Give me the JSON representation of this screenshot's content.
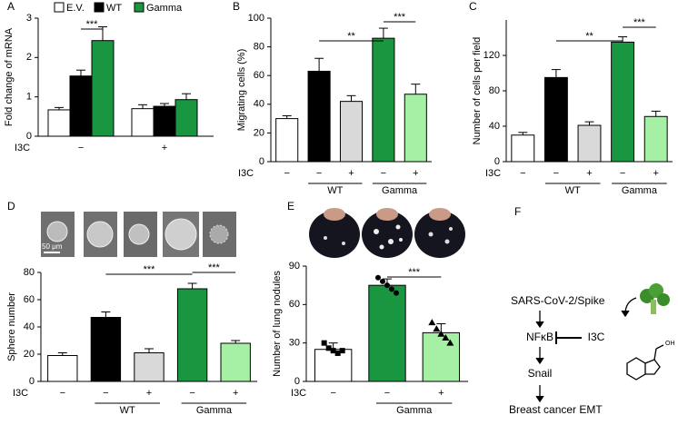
{
  "chart_data": [
    {
      "type": "grouped-bar",
      "panel": "A",
      "ylabel": "Fold change of mRNA",
      "x_row_label": "I3C",
      "categories": [
        "−",
        "+"
      ],
      "ylim": [
        0,
        3
      ],
      "yticks": [
        0,
        1,
        2,
        3
      ],
      "series": [
        {
          "name": "E.V.",
          "color": "#ffffff",
          "values": [
            0.67,
            0.7
          ],
          "errors": [
            0.06,
            0.1
          ]
        },
        {
          "name": "WT",
          "color": "#000000",
          "values": [
            1.53,
            0.76
          ],
          "errors": [
            0.15,
            0.07
          ]
        },
        {
          "name": "Gamma",
          "color": "#1a9641",
          "values": [
            2.43,
            0.93
          ],
          "errors": [
            0.35,
            0.15
          ]
        }
      ],
      "significance": [
        "***"
      ]
    },
    {
      "type": "bar",
      "panel": "B",
      "ylabel": "Migrating cells (%)",
      "x_row_label": "I3C",
      "categories": [
        "−",
        "−",
        "+",
        "−",
        "+"
      ],
      "group_labels": [
        "WT",
        "Gamma"
      ],
      "values": [
        30,
        63,
        42,
        86,
        47
      ],
      "errors": [
        2,
        9,
        4,
        7,
        7
      ],
      "colors": [
        "#ffffff",
        "#000000",
        "#d9d9d9",
        "#1a9641",
        "#a6f0a6"
      ],
      "ylim": [
        0,
        100
      ],
      "yticks": [
        0,
        20,
        40,
        60,
        80,
        100
      ],
      "significance": [
        "**",
        "***"
      ]
    },
    {
      "type": "bar",
      "panel": "C",
      "ylabel": "Number of cells per field",
      "x_row_label": "I3C",
      "categories": [
        "−",
        "−",
        "+",
        "−",
        "+"
      ],
      "group_labels": [
        "WT",
        "Gamma"
      ],
      "values": [
        30,
        95,
        41,
        135,
        51
      ],
      "errors": [
        3,
        9,
        4,
        6,
        6
      ],
      "colors": [
        "#ffffff",
        "#000000",
        "#d9d9d9",
        "#1a9641",
        "#a6f0a6"
      ],
      "ylim": [
        0,
        160
      ],
      "yticks": [
        0,
        40,
        80,
        120
      ],
      "significance": [
        "**",
        "***"
      ]
    },
    {
      "type": "bar",
      "panel": "D",
      "ylabel": "Sphere number",
      "x_row_label": "I3C",
      "scale_bar": "50 μm",
      "categories": [
        "−",
        "−",
        "+",
        "−",
        "+"
      ],
      "group_labels": [
        "WT",
        "Gamma"
      ],
      "values": [
        19,
        47,
        21,
        68,
        28
      ],
      "errors": [
        2,
        4,
        3,
        4,
        2
      ],
      "colors": [
        "#ffffff",
        "#000000",
        "#d9d9d9",
        "#1a9641",
        "#a6f0a6"
      ],
      "ylim": [
        0,
        80
      ],
      "yticks": [
        0,
        20,
        40,
        60,
        80
      ],
      "significance": [
        "***",
        "***"
      ]
    },
    {
      "type": "bar",
      "panel": "E",
      "ylabel": "Number of lung nodules",
      "x_row_label": "I3C",
      "categories": [
        "−",
        "−",
        "+"
      ],
      "group_labels": [
        "Gamma"
      ],
      "values": [
        25,
        75,
        38
      ],
      "errors": [
        5,
        5,
        7
      ],
      "colors": [
        "#ffffff",
        "#1a9641",
        "#a6f0a6"
      ],
      "markers": [
        "square",
        "circle",
        "triangle"
      ],
      "points": [
        [
          30,
          26,
          24,
          22,
          24
        ],
        [
          81,
          78,
          75,
          72,
          69
        ],
        [
          46,
          41,
          37,
          34,
          30
        ]
      ],
      "ylim": [
        0,
        90
      ],
      "yticks": [
        0,
        30,
        60,
        90
      ],
      "significance": [
        "***"
      ]
    }
  ],
  "diagram": {
    "panel": "F",
    "nodes": [
      "SARS-CoV-2/Spike",
      "NFκB",
      "I3C",
      "Snail",
      "Breast cancer EMT"
    ],
    "oh": "OH"
  }
}
